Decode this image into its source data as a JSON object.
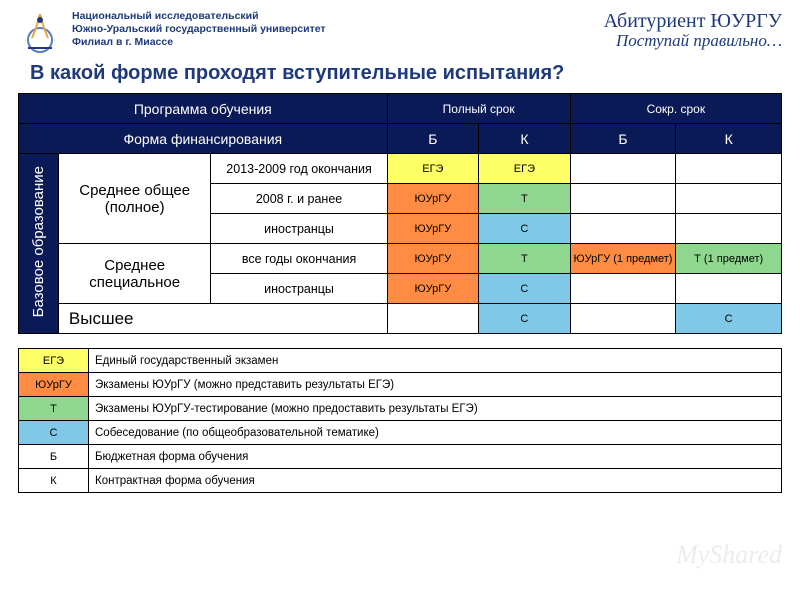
{
  "colors": {
    "brand_blue": "#1e3a7a",
    "header_dark": "#0a1a57",
    "ege": "#ffff66",
    "yurgu": "#ff8c42",
    "t": "#8fd78f",
    "c": "#7fc8e8",
    "b_legend": "#ffffff",
    "k_legend": "#ffffff"
  },
  "header": {
    "inst_line1": "Национальный исследовательский",
    "inst_line2": "Южно-Уральский государственный университет",
    "inst_line3": "Филиал в г. Миассе",
    "brand_line1": "Абитуриент ЮУРГУ",
    "brand_line2": "Поступай правильно…"
  },
  "title": "В какой форме проходят вступительные испытания?",
  "main": {
    "h_program": "Программа обучения",
    "h_full": "Полный срок",
    "h_short": "Сокр. срок",
    "h_finance": "Форма финансирования",
    "h_B": "Б",
    "h_K": "К",
    "side_base": "Базовое образование",
    "row1_label": "Среднее общее (полное)",
    "row2_label": "Среднее специальное",
    "row3_label": "Высшее",
    "sub_2013": "2013-2009 год окончания",
    "sub_2008": "2008 г. и ранее",
    "sub_foreign": "иностранцы",
    "sub_allyears": "все годы окончания",
    "cell_ege": "ЕГЭ",
    "cell_yurgu": "ЮУрГУ",
    "cell_t": "Т",
    "cell_c": "С",
    "cell_yurgu_1": "ЮУрГУ (1 предмет)",
    "cell_t_1": "Т (1 предмет)"
  },
  "legend": {
    "items": [
      {
        "key": "ЕГЭ",
        "color": "#ffff66",
        "text": "Единый государственный экзамен"
      },
      {
        "key": "ЮУрГУ",
        "color": "#ff8c42",
        "text": "Экзамены ЮУрГУ (можно представить результаты ЕГЭ)"
      },
      {
        "key": "Т",
        "color": "#8fd78f",
        "text": "Экзамены ЮУрГУ-тестирование (можно предоставить результаты ЕГЭ)"
      },
      {
        "key": "С",
        "color": "#7fc8e8",
        "text": "Собеседование (по общеобразовательной тематике)"
      },
      {
        "key": "Б",
        "color": "#ffffff",
        "text": "Бюджетная форма обучения"
      },
      {
        "key": "К",
        "color": "#ffffff",
        "text": "Контрактная форма обучения"
      }
    ]
  },
  "watermark": "MyShared"
}
